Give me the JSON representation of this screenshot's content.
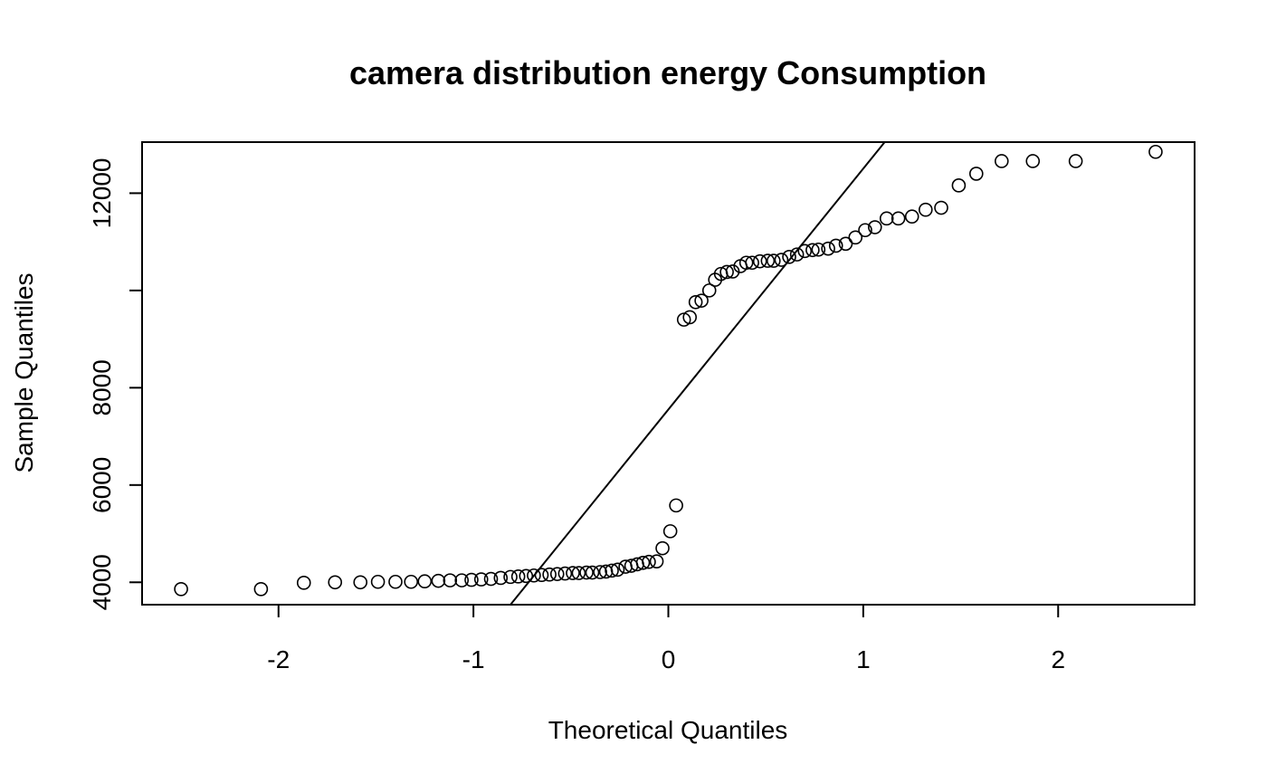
{
  "chart_data": {
    "type": "scatter",
    "title": "camera distribution energy Consumption",
    "xlabel": "Theoretical Quantiles",
    "ylabel": "Sample Quantiles",
    "xlim": [
      -2.7,
      2.7
    ],
    "ylim": [
      3540,
      13050
    ],
    "x_ticks": [
      -2,
      -1,
      0,
      1,
      2
    ],
    "x_tick_labels": [
      "-2",
      "-1",
      "0",
      "1",
      "2"
    ],
    "y_ticks": [
      4000,
      6000,
      8000,
      10000,
      12000
    ],
    "y_tick_labels": [
      "4000",
      "6000",
      "8000",
      "",
      "12000"
    ],
    "grid": false,
    "legend": "none",
    "qq_line": {
      "x": [
        -0.81,
        1.11
      ],
      "y": [
        3540,
        13050
      ]
    },
    "series": [
      {
        "marker": "open-circle",
        "points": [
          [
            -2.5,
            3860
          ],
          [
            -2.09,
            3860
          ],
          [
            -1.87,
            3990
          ],
          [
            -1.71,
            4000
          ],
          [
            -1.58,
            4000
          ],
          [
            -1.49,
            4010
          ],
          [
            -1.4,
            4010
          ],
          [
            -1.32,
            4010
          ],
          [
            -1.25,
            4020
          ],
          [
            -1.18,
            4030
          ],
          [
            -1.12,
            4040
          ],
          [
            -1.06,
            4040
          ],
          [
            -1.01,
            4050
          ],
          [
            -0.96,
            4060
          ],
          [
            -0.91,
            4070
          ],
          [
            -0.86,
            4090
          ],
          [
            -0.81,
            4110
          ],
          [
            -0.77,
            4120
          ],
          [
            -0.73,
            4130
          ],
          [
            -0.69,
            4140
          ],
          [
            -0.65,
            4150
          ],
          [
            -0.61,
            4160
          ],
          [
            -0.57,
            4170
          ],
          [
            -0.53,
            4180
          ],
          [
            -0.49,
            4190
          ],
          [
            -0.46,
            4190
          ],
          [
            -0.42,
            4200
          ],
          [
            -0.39,
            4200
          ],
          [
            -0.35,
            4210
          ],
          [
            -0.32,
            4220
          ],
          [
            -0.29,
            4240
          ],
          [
            -0.26,
            4260
          ],
          [
            -0.22,
            4320
          ],
          [
            -0.19,
            4340
          ],
          [
            -0.16,
            4370
          ],
          [
            -0.13,
            4400
          ],
          [
            -0.1,
            4420
          ],
          [
            -0.06,
            4430
          ],
          [
            -0.03,
            4700
          ],
          [
            0.01,
            5050
          ],
          [
            0.04,
            5580
          ],
          [
            0.08,
            9400
          ],
          [
            0.11,
            9450
          ],
          [
            0.14,
            9760
          ],
          [
            0.17,
            9790
          ],
          [
            0.21,
            10000
          ],
          [
            0.24,
            10220
          ],
          [
            0.27,
            10340
          ],
          [
            0.3,
            10380
          ],
          [
            0.33,
            10390
          ],
          [
            0.37,
            10500
          ],
          [
            0.4,
            10570
          ],
          [
            0.43,
            10570
          ],
          [
            0.47,
            10600
          ],
          [
            0.51,
            10610
          ],
          [
            0.54,
            10610
          ],
          [
            0.58,
            10630
          ],
          [
            0.62,
            10690
          ],
          [
            0.66,
            10740
          ],
          [
            0.7,
            10810
          ],
          [
            0.74,
            10830
          ],
          [
            0.77,
            10840
          ],
          [
            0.82,
            10860
          ],
          [
            0.86,
            10920
          ],
          [
            0.91,
            10960
          ],
          [
            0.96,
            11090
          ],
          [
            1.01,
            11240
          ],
          [
            1.06,
            11300
          ],
          [
            1.12,
            11480
          ],
          [
            1.18,
            11480
          ],
          [
            1.25,
            11520
          ],
          [
            1.32,
            11660
          ],
          [
            1.4,
            11700
          ],
          [
            1.49,
            12160
          ],
          [
            1.58,
            12400
          ],
          [
            1.71,
            12660
          ],
          [
            1.87,
            12660
          ],
          [
            2.09,
            12660
          ],
          [
            2.5,
            12850
          ]
        ]
      }
    ]
  }
}
